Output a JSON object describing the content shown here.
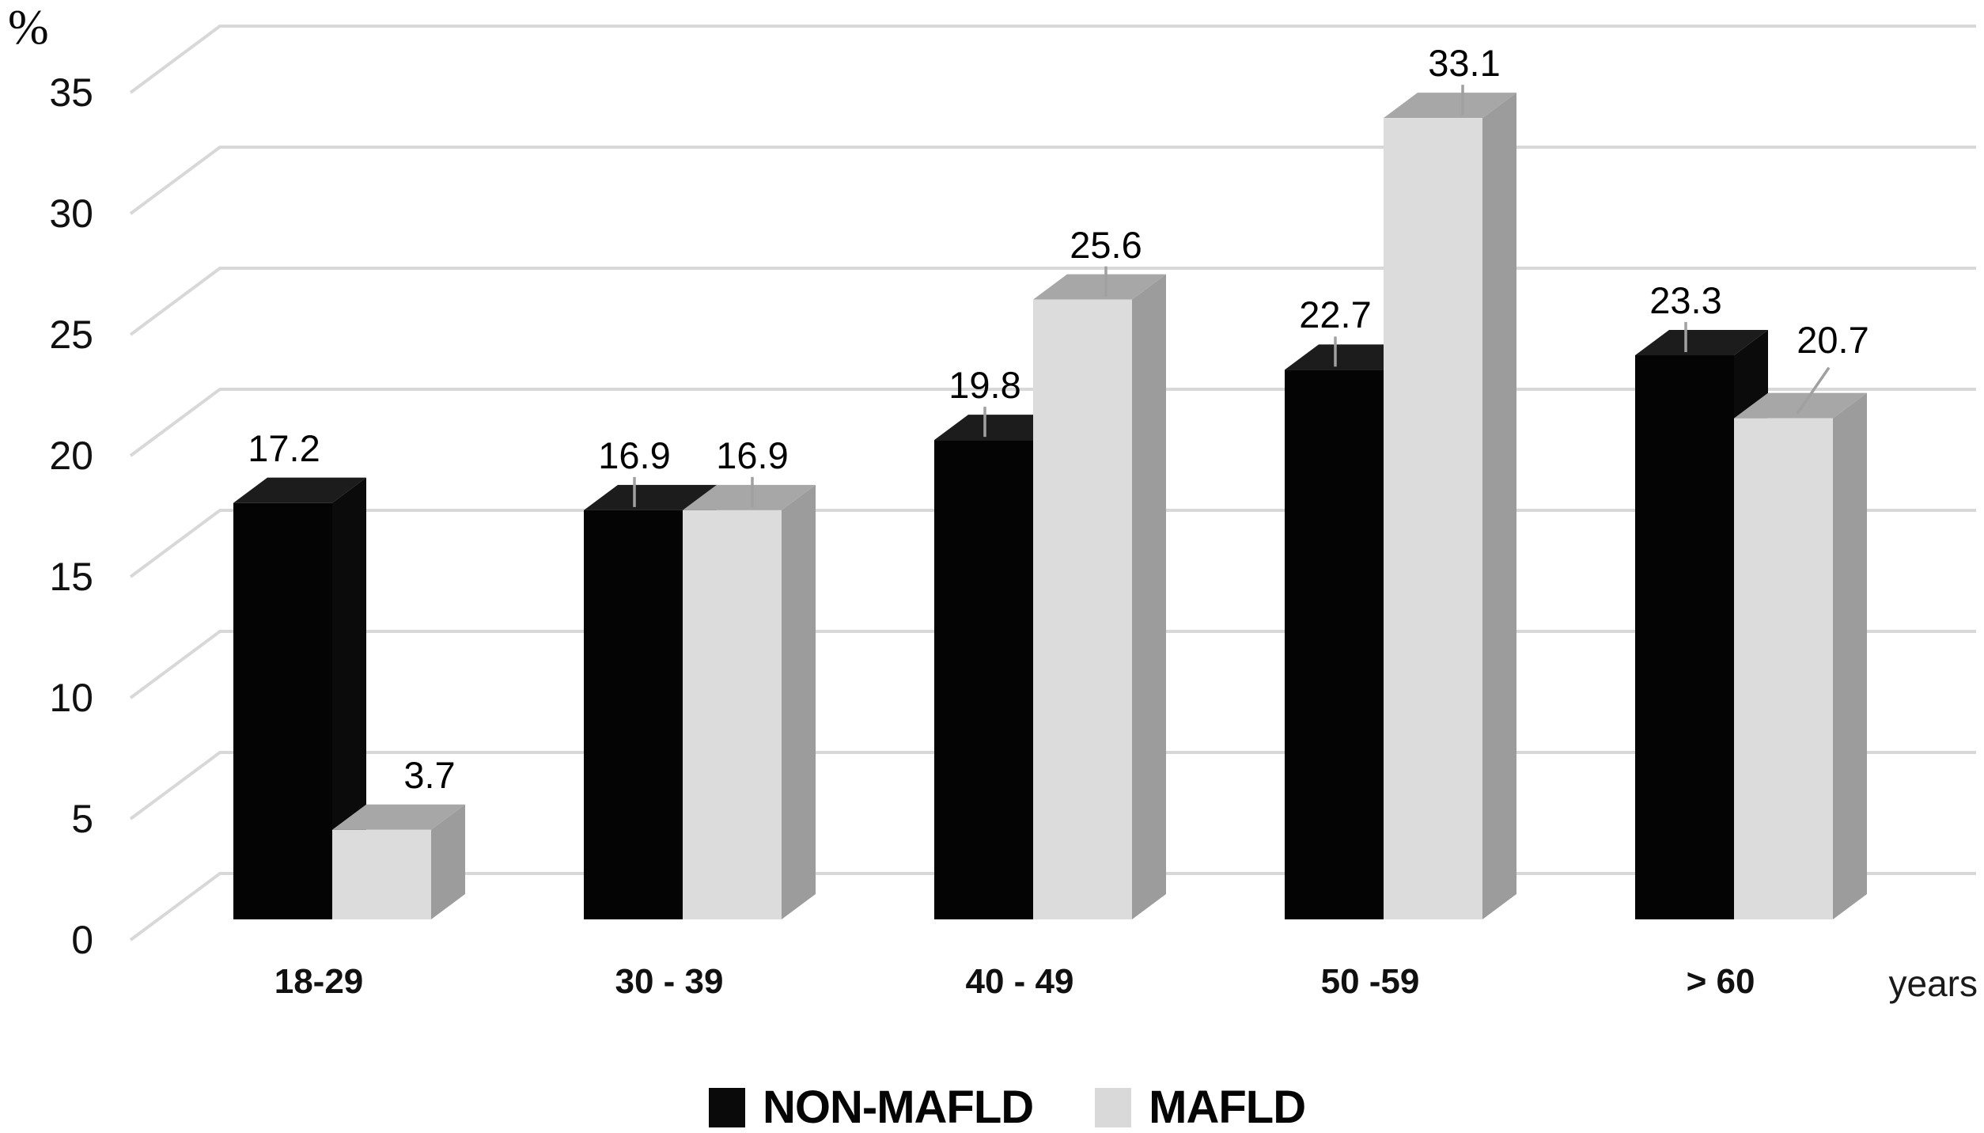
{
  "chart_data": {
    "type": "bar",
    "style_3d": true,
    "title": "",
    "ylabel": "%",
    "xlabel": "years",
    "categories": [
      "18-29",
      "30 - 39",
      "40 - 49",
      "50 -59",
      "> 60"
    ],
    "series": [
      {
        "name": "NON-MAFLD",
        "color": "#0a0a0a",
        "values": [
          17.2,
          16.9,
          19.8,
          22.7,
          23.3
        ]
      },
      {
        "name": "MAFLD",
        "color": "#d9d9d9",
        "values": [
          3.7,
          16.9,
          25.6,
          33.1,
          20.7
        ]
      }
    ],
    "yticks": [
      0,
      5,
      10,
      15,
      20,
      25,
      30,
      35
    ],
    "ylim": [
      0,
      35
    ],
    "grid": true,
    "legend_position": "bottom",
    "colors": {
      "gridline": "#d8d8d8",
      "leader_line": "#a0a0a0",
      "non_mafld_front": "#040404",
      "non_mafld_top": "#1c1c1c",
      "non_mafld_side": "#0b0b0b",
      "mafld_front": "#dcdcdc",
      "mafld_top": "#a7a7a7",
      "mafld_side": "#9c9c9c"
    }
  }
}
